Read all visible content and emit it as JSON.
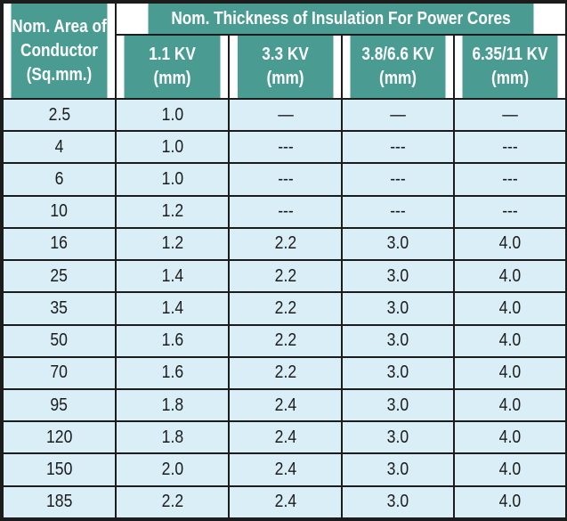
{
  "table": {
    "corner_lines": [
      "Nom. Area of",
      "Conductor",
      "(Sq.mm.)"
    ],
    "group_header": "Nom. Thickness of Insulation For Power Cores",
    "columns": [
      {
        "label": "1.1 KV",
        "unit": "(mm)"
      },
      {
        "label": "3.3 KV",
        "unit": "(mm)"
      },
      {
        "label": "3.8/6.6 KV",
        "unit": "(mm)"
      },
      {
        "label": "6.35/11 KV",
        "unit": "(mm)"
      }
    ],
    "rows": [
      [
        "2.5",
        "1.0",
        "—",
        "—",
        "—"
      ],
      [
        "4",
        "1.0",
        "---",
        "---",
        "---"
      ],
      [
        "6",
        "1.0",
        "---",
        "---",
        "---"
      ],
      [
        "10",
        "1.2",
        "---",
        "---",
        "---"
      ],
      [
        "16",
        "1.2",
        "2.2",
        "3.0",
        "4.0"
      ],
      [
        "25",
        "1.4",
        "2.2",
        "3.0",
        "4.0"
      ],
      [
        "35",
        "1.4",
        "2.2",
        "3.0",
        "4.0"
      ],
      [
        "50",
        "1.6",
        "2.2",
        "3.0",
        "4.0"
      ],
      [
        "70",
        "1.6",
        "2.2",
        "3.0",
        "4.0"
      ],
      [
        "95",
        "1.8",
        "2.4",
        "3.0",
        "4.0"
      ],
      [
        "120",
        "1.8",
        "2.4",
        "3.0",
        "4.0"
      ],
      [
        "150",
        "2.0",
        "2.4",
        "3.0",
        "4.0"
      ],
      [
        "185",
        "2.2",
        "2.4",
        "3.0",
        "4.0"
      ]
    ],
    "colors": {
      "header_bg": "#4a9c93",
      "header_text": "#ffffff",
      "cell_bg": "#d9eef6",
      "border": "#1c1c1c"
    }
  }
}
